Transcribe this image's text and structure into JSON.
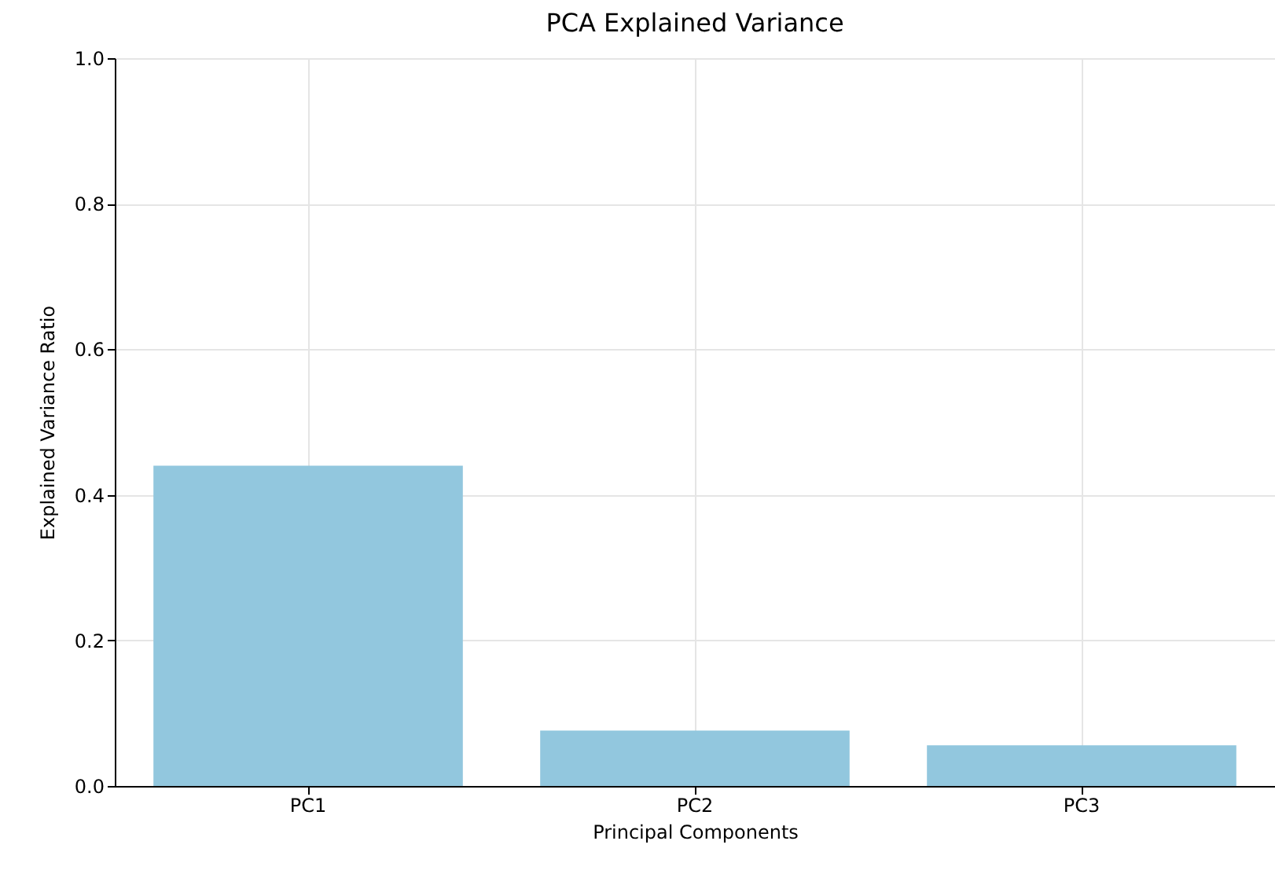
{
  "chart_data": {
    "type": "bar",
    "title": "PCA Explained Variance",
    "xlabel": "Principal Components",
    "ylabel": "Explained Variance Ratio",
    "categories": [
      "PC1",
      "PC2",
      "PC3"
    ],
    "values": [
      0.44,
      0.076,
      0.056
    ],
    "color": "#92c7de",
    "ylim": [
      0,
      1
    ],
    "yticks": [
      {
        "value": 0,
        "label": "0.0"
      },
      {
        "value": 0.2,
        "label": "0.2"
      },
      {
        "value": 0.4,
        "label": "0.4"
      },
      {
        "value": 0.6,
        "label": "0.6"
      },
      {
        "value": 0.8,
        "label": "0.8"
      },
      {
        "value": 1,
        "label": "1.0"
      }
    ],
    "grid": true
  }
}
